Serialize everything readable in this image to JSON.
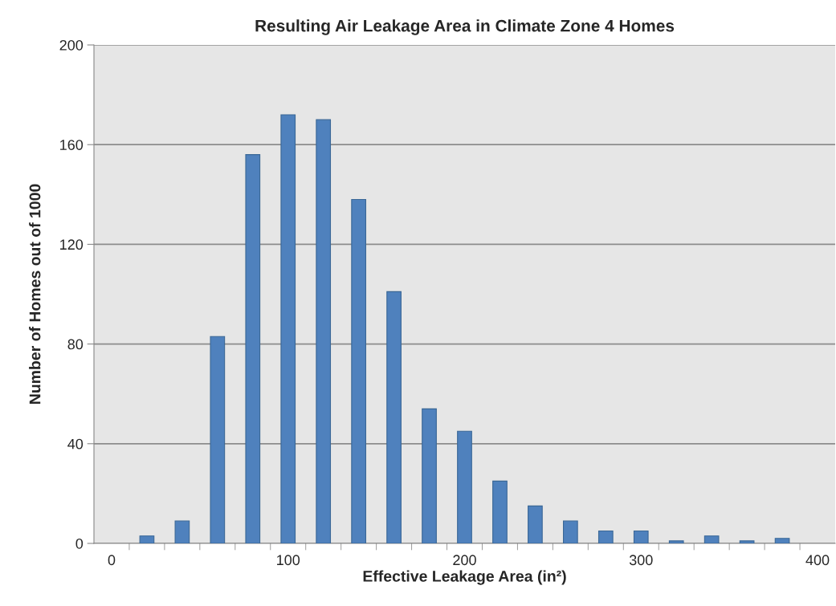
{
  "chart_data": {
    "type": "bar",
    "title": "Resulting Air Leakage Area in Climate Zone 4 Homes",
    "xlabel": "Effective Leakage Area (in²)",
    "ylabel": "Number of Homes out of 1000",
    "categories": [
      "0",
      null,
      null,
      null,
      null,
      "100",
      null,
      null,
      null,
      null,
      "200",
      null,
      null,
      null,
      null,
      "300",
      null,
      null,
      null,
      null,
      "400"
    ],
    "values": [
      0,
      3,
      9,
      83,
      156,
      172,
      170,
      138,
      101,
      54,
      45,
      25,
      15,
      9,
      5,
      5,
      1,
      3,
      1,
      2,
      0
    ],
    "color": "#4f81bd",
    "ylim": [
      0,
      200
    ],
    "yticks": [
      0,
      40,
      80,
      120,
      160,
      200
    ],
    "grid": "y",
    "legend": false
  }
}
